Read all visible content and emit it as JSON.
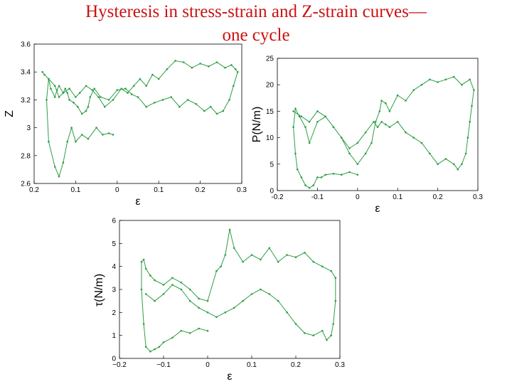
{
  "title": {
    "line1": "Hysteresis in stress-strain and Z-strain curves—",
    "line2": "one cycle"
  },
  "colors": {
    "series": "#2e9e45",
    "title": "#cc1111"
  },
  "chart_data": [
    {
      "type": "line",
      "xlabel": "ε",
      "ylabel": "Z",
      "xlim": [
        -0.2,
        0.3
      ],
      "ylim": [
        2.6,
        3.6
      ],
      "xticks": [
        "0.2",
        "0.1",
        "0",
        "0.1",
        "0.2",
        "0.3"
      ],
      "yticks": [
        "2.6",
        "2.8",
        "3",
        "3.2",
        "3.4",
        "3.6"
      ],
      "grid": false,
      "series": [
        {
          "x": [
            -0.01,
            -0.02,
            -0.035,
            -0.05,
            -0.07,
            -0.085,
            -0.1,
            -0.11,
            -0.12,
            -0.13,
            -0.14,
            -0.15,
            -0.165,
            -0.17,
            -0.165,
            -0.16,
            -0.15,
            -0.145,
            -0.14,
            -0.13,
            -0.115,
            -0.1,
            -0.09,
            -0.075,
            -0.06,
            -0.045,
            -0.03,
            -0.01,
            0.01,
            0.025,
            0.04,
            0.055,
            0.07,
            0.085,
            0.1,
            0.12,
            0.14,
            0.16,
            0.18,
            0.2,
            0.22,
            0.24,
            0.26,
            0.275,
            0.285,
            0.29,
            0.28,
            0.27,
            0.255,
            0.24,
            0.225,
            0.21,
            0.19,
            0.17,
            0.15,
            0.13,
            0.11,
            0.09,
            0.07,
            0.05,
            0.035,
            0.02,
            0.0,
            -0.02,
            -0.04,
            -0.055,
            -0.065,
            -0.07,
            -0.075,
            -0.085,
            -0.095,
            -0.105,
            -0.115,
            -0.12,
            -0.125,
            -0.13,
            -0.14,
            -0.15,
            -0.165,
            -0.175,
            -0.18
          ],
          "y": [
            2.95,
            2.96,
            2.95,
            3.0,
            2.92,
            2.95,
            2.9,
            3.0,
            2.9,
            2.75,
            2.65,
            2.72,
            2.9,
            3.2,
            3.35,
            3.28,
            3.22,
            3.27,
            3.3,
            3.25,
            3.28,
            3.22,
            3.25,
            3.3,
            3.27,
            3.22,
            3.15,
            3.2,
            3.28,
            3.25,
            3.3,
            3.35,
            3.3,
            3.38,
            3.35,
            3.42,
            3.48,
            3.47,
            3.43,
            3.46,
            3.44,
            3.47,
            3.43,
            3.45,
            3.42,
            3.4,
            3.3,
            3.2,
            3.12,
            3.1,
            3.15,
            3.12,
            3.17,
            3.2,
            3.15,
            3.22,
            3.2,
            3.18,
            3.15,
            3.22,
            3.24,
            3.28,
            3.27,
            3.2,
            3.22,
            3.28,
            3.22,
            3.15,
            3.12,
            3.1,
            3.15,
            3.18,
            3.2,
            3.25,
            3.28,
            3.25,
            3.22,
            3.3,
            3.35,
            3.38,
            3.4
          ]
        }
      ]
    },
    {
      "type": "line",
      "xlabel": "ε",
      "ylabel": "P(N/m)",
      "xlim": [
        -0.2,
        0.3
      ],
      "ylim": [
        0,
        25
      ],
      "xticks": [
        "-0.2",
        "-0.1",
        "0",
        "0.1",
        "0.2",
        "0.3"
      ],
      "yticks": [
        "0",
        "5",
        "10",
        "15",
        "20",
        "25"
      ],
      "grid": false,
      "series": [
        {
          "x": [
            0.0,
            -0.02,
            -0.04,
            -0.06,
            -0.08,
            -0.09,
            -0.1,
            -0.11,
            -0.12,
            -0.13,
            -0.14,
            -0.15,
            -0.155,
            -0.16,
            -0.155,
            -0.145,
            -0.13,
            -0.12,
            -0.1,
            -0.08,
            -0.06,
            -0.04,
            -0.02,
            0.0,
            0.02,
            0.035,
            0.045,
            0.055,
            0.06,
            0.07,
            0.08,
            0.1,
            0.12,
            0.14,
            0.16,
            0.18,
            0.2,
            0.22,
            0.24,
            0.26,
            0.28,
            0.29,
            0.285,
            0.28,
            0.275,
            0.27,
            0.26,
            0.25,
            0.24,
            0.22,
            0.2,
            0.18,
            0.16,
            0.14,
            0.12,
            0.1,
            0.08,
            0.07,
            0.06,
            0.05,
            0.04,
            0.02,
            0.0,
            -0.02,
            -0.04,
            -0.06,
            -0.08,
            -0.1,
            -0.12,
            -0.14,
            -0.16
          ],
          "y": [
            3,
            3.5,
            3,
            3.2,
            3,
            2.5,
            2.5,
            1,
            0.5,
            1,
            2.5,
            4,
            7,
            12,
            15.5,
            14,
            12,
            9,
            13,
            14,
            12,
            10,
            7,
            5,
            7,
            9,
            13,
            15,
            17,
            16.5,
            15,
            18,
            17,
            19,
            20,
            21,
            20.5,
            21,
            21.5,
            20,
            21,
            19,
            16,
            13,
            10,
            7,
            5,
            4,
            5,
            6,
            5,
            7,
            9,
            10,
            11,
            13,
            12,
            12.5,
            13,
            12,
            13,
            11,
            9,
            8,
            10,
            12,
            14,
            15,
            13,
            14,
            15
          ]
        }
      ]
    },
    {
      "type": "line",
      "xlabel": "ε",
      "ylabel": "τ(N/m)",
      "xlim": [
        -0.2,
        0.3
      ],
      "ylim": [
        0,
        6
      ],
      "xticks": [
        "−0.2",
        "−0.1",
        "0",
        "0.1",
        "0.2",
        "0.3"
      ],
      "yticks": [
        "0",
        "1",
        "2",
        "3",
        "4",
        "5",
        "6"
      ],
      "grid": false,
      "series": [
        {
          "x": [
            0.0,
            -0.02,
            -0.04,
            -0.06,
            -0.08,
            -0.1,
            -0.11,
            -0.12,
            -0.13,
            -0.14,
            -0.145,
            -0.15,
            -0.15,
            -0.145,
            -0.14,
            -0.13,
            -0.12,
            -0.1,
            -0.08,
            -0.06,
            -0.04,
            -0.02,
            0.0,
            0.02,
            0.03,
            0.04,
            0.05,
            0.06,
            0.08,
            0.1,
            0.12,
            0.14,
            0.16,
            0.18,
            0.2,
            0.22,
            0.24,
            0.26,
            0.28,
            0.29,
            0.29,
            0.285,
            0.28,
            0.27,
            0.26,
            0.24,
            0.22,
            0.2,
            0.18,
            0.16,
            0.14,
            0.12,
            0.1,
            0.08,
            0.06,
            0.04,
            0.02,
            0.0,
            -0.02,
            -0.04,
            -0.06,
            -0.08,
            -0.1,
            -0.12,
            -0.14
          ],
          "y": [
            1.2,
            1.3,
            1.1,
            1.2,
            0.9,
            0.7,
            0.5,
            0.4,
            0.3,
            0.5,
            1.5,
            3.0,
            4.2,
            4.3,
            3.9,
            3.6,
            3.4,
            3.2,
            3.5,
            3.3,
            3.0,
            2.6,
            2.5,
            3.8,
            4.0,
            4.5,
            5.6,
            4.8,
            4.2,
            4.5,
            4.3,
            4.8,
            4.2,
            4.5,
            4.4,
            4.6,
            4.2,
            4.0,
            3.8,
            3.5,
            2.5,
            1.5,
            1.0,
            0.8,
            1.2,
            1.0,
            1.1,
            1.5,
            2.0,
            2.5,
            2.8,
            3.0,
            2.8,
            2.5,
            2.2,
            2.0,
            1.8,
            2.0,
            2.2,
            2.5,
            3.0,
            3.2,
            2.8,
            2.5,
            2.8
          ]
        }
      ]
    }
  ]
}
